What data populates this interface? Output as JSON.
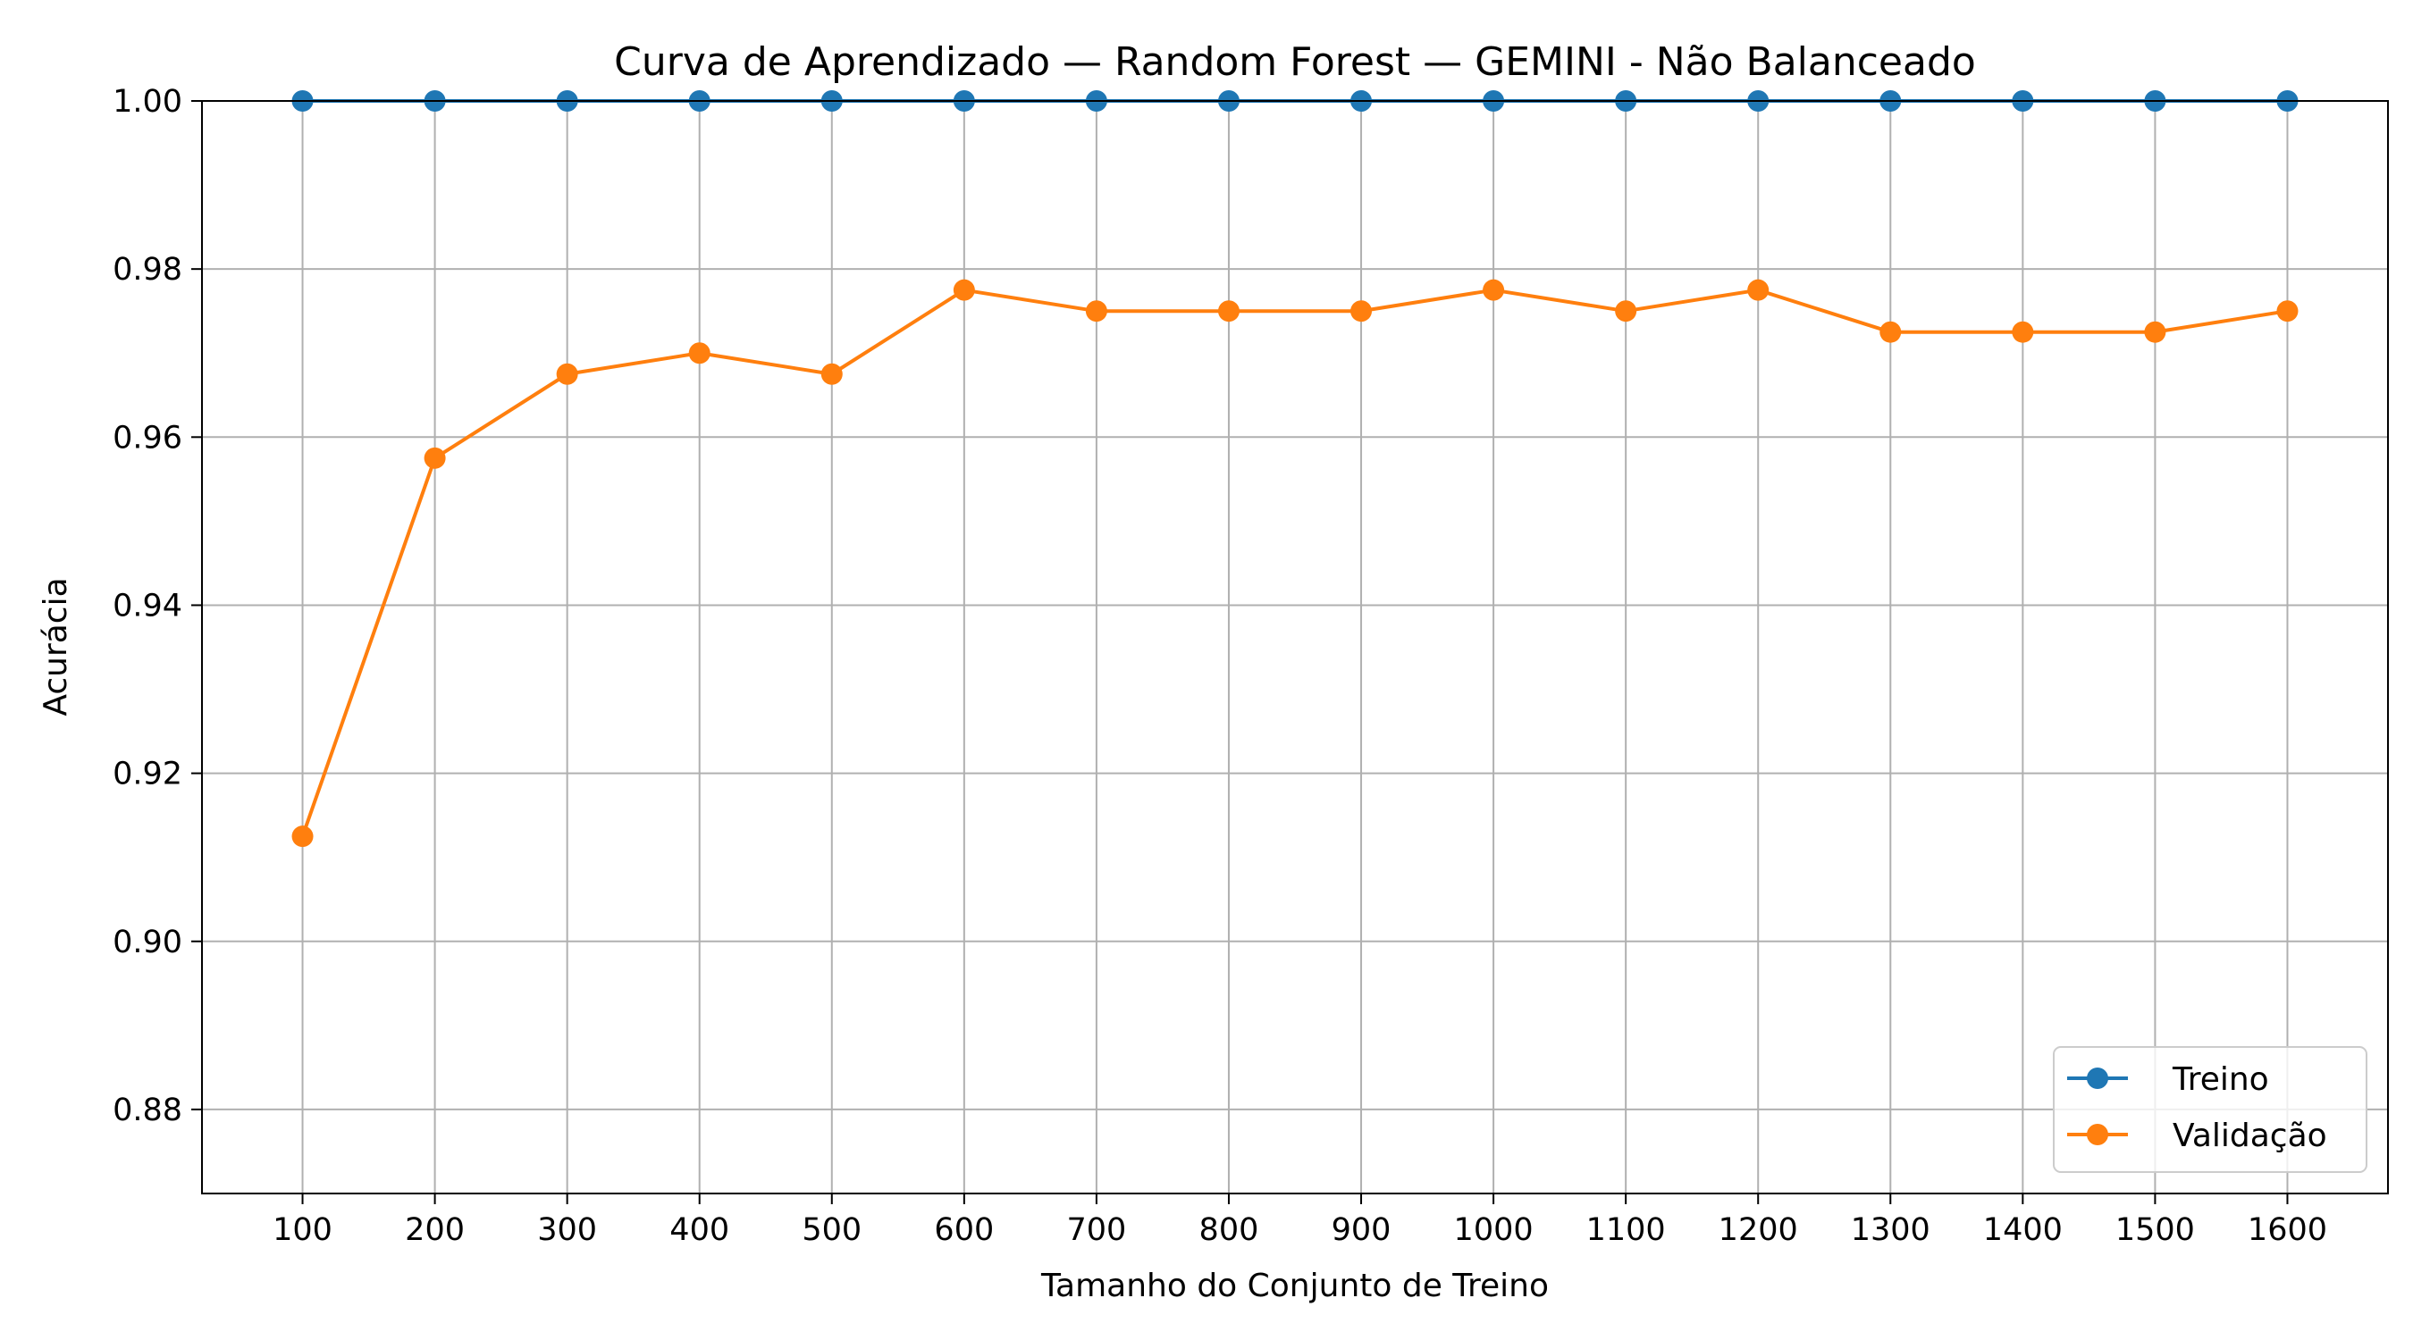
{
  "chart_data": {
    "type": "line",
    "title": "Curva de Aprendizado — Random Forest — GEMINI - Não Balanceado",
    "xlabel": "Tamanho do Conjunto de Treino",
    "ylabel": "Acurácia",
    "x": [
      100,
      200,
      300,
      400,
      500,
      600,
      700,
      800,
      900,
      1000,
      1100,
      1200,
      1300,
      1400,
      1500,
      1600
    ],
    "xticks": [
      "100",
      "200",
      "300",
      "400",
      "500",
      "600",
      "700",
      "800",
      "900",
      "1000",
      "1100",
      "1200",
      "1300",
      "1400",
      "1500",
      "1600"
    ],
    "yticks": [
      "0.88",
      "0.90",
      "0.92",
      "0.94",
      "0.96",
      "0.98",
      "1.00"
    ],
    "xlim": [
      24,
      1676
    ],
    "ylim": [
      0.87,
      1.0
    ],
    "grid": true,
    "legend_position": "lower-right",
    "series": [
      {
        "name": "Treino",
        "color": "#1f77b4",
        "marker": "circle",
        "values": [
          1.0,
          1.0,
          1.0,
          1.0,
          1.0,
          1.0,
          1.0,
          1.0,
          1.0,
          1.0,
          1.0,
          1.0,
          1.0,
          1.0,
          1.0,
          1.0
        ]
      },
      {
        "name": "Validação",
        "color": "#ff7f0e",
        "marker": "circle",
        "values": [
          0.9125,
          0.9575,
          0.9675,
          0.97,
          0.9675,
          0.9775,
          0.975,
          0.975,
          0.975,
          0.9775,
          0.975,
          0.9775,
          0.9725,
          0.9725,
          0.9725,
          0.975
        ]
      }
    ]
  }
}
